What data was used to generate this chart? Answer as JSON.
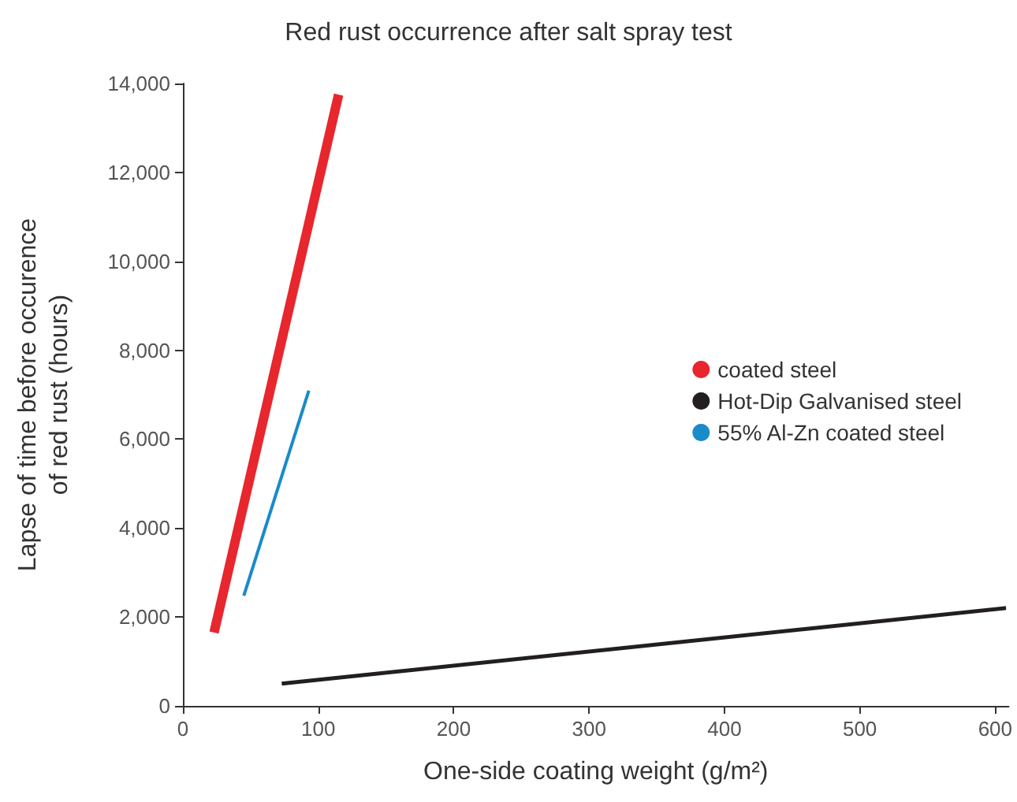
{
  "chart_data": {
    "type": "line",
    "title": "Red rust occurrence after salt spray test",
    "xlabel": "One-side coating weight (g/m²)",
    "ylabel": "Lapse of time before occurence\nof red rust (hours)",
    "series": [
      {
        "name": "coated steel",
        "color": "#e8262d",
        "x": [
          23,
          115
        ],
        "values": [
          1650,
          13750
        ]
      },
      {
        "name": "Hot-Dip Galvanised steel",
        "color": "#231f20",
        "x": [
          73,
          608
        ],
        "values": [
          500,
          2200
        ]
      },
      {
        "name": "55% Al-Zn coated steel",
        "color": "#1a8ac9",
        "x": [
          45,
          93
        ],
        "values": [
          2480,
          7090
        ]
      }
    ],
    "xlim": [
      0,
      610
    ],
    "xticks": [
      0,
      100,
      200,
      300,
      400,
      500,
      600
    ],
    "ylim": [
      0,
      14000
    ],
    "yticks": [
      0,
      {
        "value": 2000,
        "label": "2,000"
      },
      {
        "value": 4000,
        "label": "4,000"
      },
      {
        "value": 6000,
        "label": "6,000"
      },
      {
        "value": 8000,
        "label": "8,000"
      },
      {
        "value": 10000,
        "label": "10,000"
      },
      {
        "value": 12000,
        "label": "12,000"
      },
      {
        "value": 14000,
        "label": "14,000"
      }
    ],
    "legend": "right",
    "marker": "none",
    "line_style": "solid",
    "grid": false
  }
}
